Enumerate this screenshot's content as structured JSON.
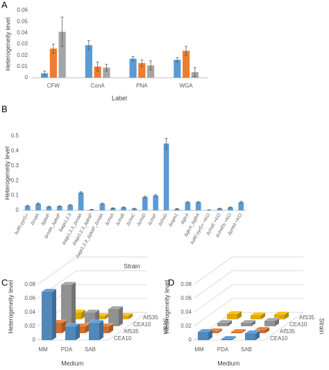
{
  "chart_data": [
    {
      "type": "bar",
      "panel": "A",
      "y_label": "Heterogeneity level",
      "x_label": "Label",
      "categories": [
        "CFW",
        "ConA",
        "PNA",
        "WGA"
      ],
      "series": [
        {
          "color": "#5b9bd5",
          "values": [
            0.004,
            0.029,
            0.017,
            0.016
          ],
          "errors": [
            0.002,
            0.004,
            0.002,
            0.002
          ]
        },
        {
          "color": "#ed7d31",
          "values": [
            0.026,
            0.01,
            0.013,
            0.024
          ],
          "errors": [
            0.004,
            0.004,
            0.003,
            0.004
          ]
        },
        {
          "color": "#a5a5a5",
          "values": [
            0.041,
            0.009,
            0.011,
            0.005
          ],
          "errors": [
            0.013,
            0.003,
            0.004,
            0.004
          ]
        }
      ],
      "ylim": [
        0,
        0.06
      ],
      "yticks": [
        0,
        0.01,
        0.02,
        0.03,
        0.04,
        0.05,
        0.06
      ],
      "grid": false
    },
    {
      "type": "bar",
      "panel": "B",
      "y_label": "Heterogeneity level",
      "x_label": "Strain",
      "categories": [
        "ku80 pyrG+",
        "ΔrodA",
        "ΔpksP",
        "ΔrodA_ΔpksP",
        "Δags1,2,3",
        "Δags1,2,3_ΔrodA",
        "Δags1,2,3_ΔpksP",
        "Δags1,2,3_ΔpksP_ΔrodA",
        "ΔchsA",
        "ΔchsB",
        "ΔchsC",
        "ΔchsD",
        "ΔchsF",
        "ΔchsG",
        "Δugm1",
        "Δgtc4",
        "Δgtc4_Δgtb4",
        "ku80 pyrG+ +KCl",
        "ΔchsE +KCl",
        "ΔchsEb +KCl",
        "Δpmt4 +KCl"
      ],
      "color": "#5b9bd5",
      "values": [
        0.03,
        0.045,
        0.025,
        0.028,
        0.035,
        0.12,
        0.005,
        0.045,
        0.015,
        0.02,
        0.012,
        0.09,
        0.1,
        0.45,
        0.01,
        0.055,
        0.055,
        0.003,
        0.012,
        0.02,
        0.055
      ],
      "errors": [
        0.004,
        0.005,
        0.003,
        0.003,
        0.004,
        0.006,
        0.002,
        0.005,
        0.002,
        0.003,
        0.002,
        0.005,
        0.006,
        0.035,
        0.002,
        0.004,
        0.004,
        0.001,
        0.002,
        0.003,
        0.006
      ],
      "ylim": [
        0,
        0.5
      ],
      "yticks": [
        0,
        0.1,
        0.2,
        0.3,
        0.4,
        0.5
      ],
      "grid": false
    },
    {
      "type": "bar3d",
      "panel": "C",
      "y_label": "Heterogeneity level",
      "x_label": "Medium",
      "z_label": "Strain",
      "categories": [
        "MM",
        "PDA",
        "SAB"
      ],
      "series": [
        {
          "name": "CEA10",
          "color": "#5b9bd5",
          "values": [
            0.07,
            0.02,
            0.025
          ]
        },
        {
          "name": "AfS35",
          "color": "#ed7d31",
          "values": [
            0.015,
            0.01,
            0.01
          ]
        },
        {
          "name": "CEA10",
          "color": "#a5a5a5",
          "values": [
            0.06,
            0.02,
            0.025
          ]
        },
        {
          "name": "AfS35",
          "color": "#ffc000",
          "values": [
            0.01,
            0.005,
            0.005
          ]
        }
      ],
      "ylim": [
        0,
        0.08
      ],
      "yticks": [
        0,
        0.02,
        0.04,
        0.06,
        0.08
      ]
    },
    {
      "type": "bar3d",
      "panel": "D",
      "y_label": "Heterogeneity level",
      "x_label": "Medium",
      "z_label": "Strain",
      "categories": [
        "MM",
        "PDA",
        "SAB"
      ],
      "series": [
        {
          "name": "CEA10",
          "color": "#5b9bd5",
          "values": [
            0.012,
            0.002,
            0.01
          ]
        },
        {
          "name": "AfS35",
          "color": "#ed7d31",
          "values": [
            0.003,
            0.002,
            0.005
          ]
        },
        {
          "name": "CEA10",
          "color": "#a5a5a5",
          "values": [
            0.005,
            0.005,
            0.008
          ]
        },
        {
          "name": "AfS35",
          "color": "#ffc000",
          "values": [
            0.008,
            0.006,
            0.007
          ]
        }
      ],
      "ylim": [
        0,
        0.08
      ],
      "yticks": [
        0,
        0.02,
        0.04,
        0.06,
        0.08
      ]
    }
  ]
}
